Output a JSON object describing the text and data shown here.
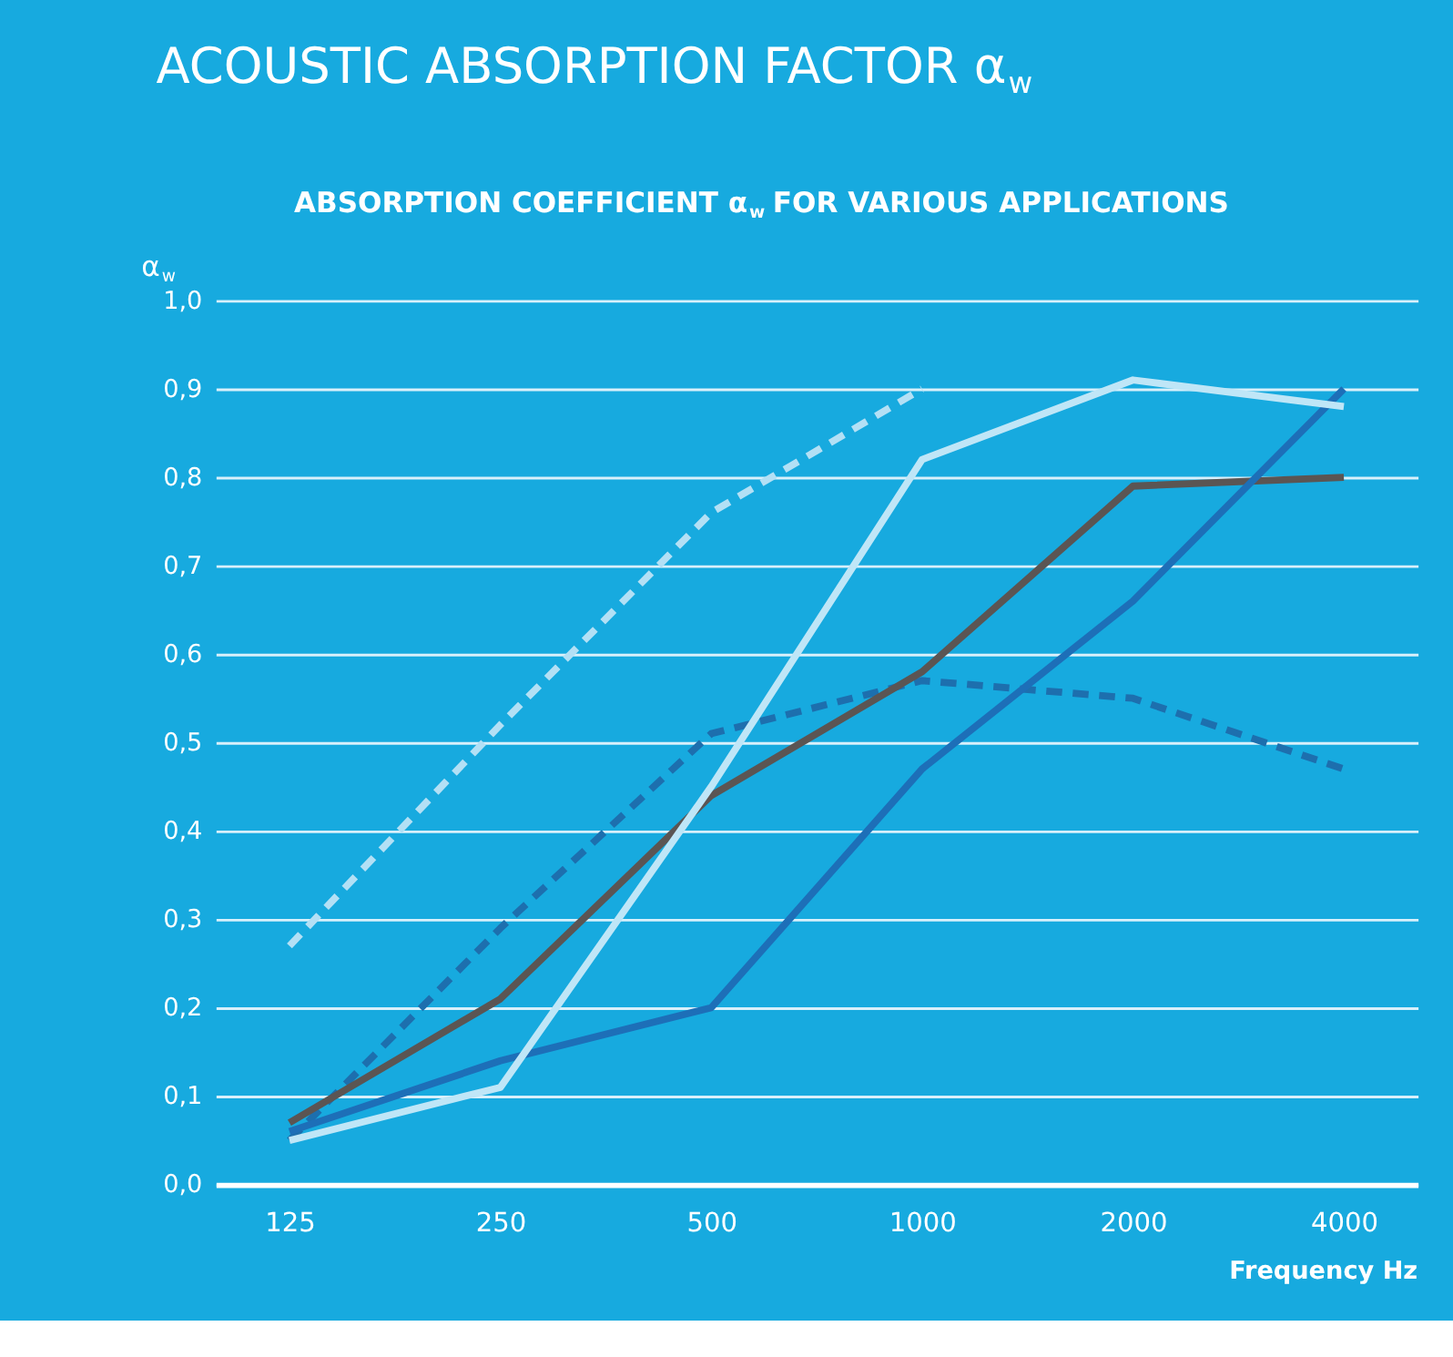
{
  "chart_data": {
    "type": "line",
    "title": "ACOUSTIC ABSORPTION FACTOR α$_{w}$",
    "subtitle": "ABSORPTION COEFFICIENT α$_{w}$ FOR VARIOUS APPLICATIONS",
    "ylabel": "α$_{w}$",
    "xlabel": "Frequency Hz",
    "categories": [
      "125",
      "250",
      "500",
      "1000",
      "2000",
      "4000"
    ],
    "series": [
      {
        "color": "#b3e0f5",
        "line_style": "dashed",
        "values": [
          0.27,
          0.52,
          0.76,
          0.9,
          null,
          null
        ]
      },
      {
        "color": "#1d6fae",
        "line_style": "dashed",
        "values": [
          0.05,
          0.29,
          0.51,
          0.57,
          0.55,
          0.47
        ]
      },
      {
        "color": "#5b5553",
        "line_style": "solid",
        "values": [
          0.07,
          0.21,
          0.44,
          0.58,
          0.79,
          0.8
        ]
      },
      {
        "color": "#1d6fb8",
        "line_style": "solid",
        "values": [
          0.06,
          0.14,
          0.2,
          0.47,
          0.66,
          0.9
        ]
      },
      {
        "color": "#bfe6f7",
        "line_style": "solid",
        "values": [
          0.05,
          0.11,
          0.45,
          0.82,
          0.91,
          0.88
        ]
      }
    ],
    "ylim": [
      0,
      1.0
    ],
    "yticks": [
      {
        "value": 0,
        "label": "0,0"
      },
      {
        "value": 0.1,
        "label": "0,1"
      },
      {
        "value": 0.2,
        "label": "0,2"
      },
      {
        "value": 0.3,
        "label": "0,3"
      },
      {
        "value": 0.4,
        "label": "0,4"
      },
      {
        "value": 0.5,
        "label": "0,5"
      },
      {
        "value": 0.6,
        "label": "0,6"
      },
      {
        "value": 0.7,
        "label": "0,7"
      },
      {
        "value": 0.8,
        "label": "0,8"
      },
      {
        "value": 0.9,
        "label": "0,9"
      },
      {
        "value": 1.0,
        "label": "1,0"
      }
    ],
    "grid": "y",
    "marker": "none",
    "legend": false
  }
}
